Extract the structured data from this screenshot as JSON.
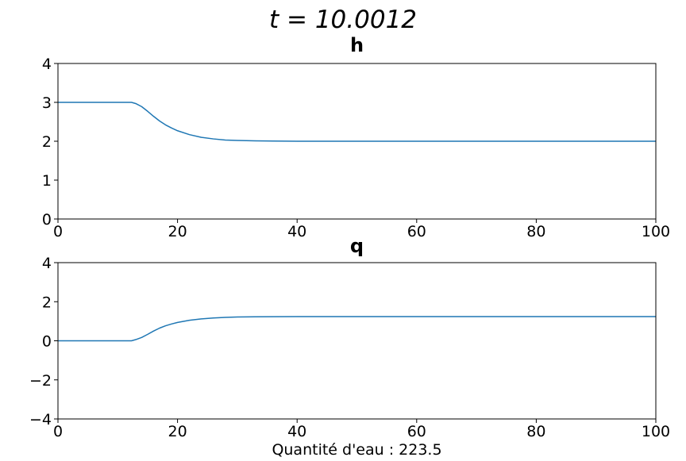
{
  "figure": {
    "suptitle": "t = 10.0012",
    "footer": "Quantité d'eau : 223.5",
    "line_color": "#1f77b4"
  },
  "chart_data": [
    {
      "type": "line",
      "title": "h",
      "xlabel": "",
      "ylabel": "",
      "xlim": [
        0,
        100
      ],
      "ylim": [
        0,
        4
      ],
      "xticks": [
        0,
        20,
        40,
        60,
        80,
        100
      ],
      "xtick_labels": [
        "0",
        "20",
        "40",
        "60",
        "80",
        "100"
      ],
      "yticks": [
        0,
        1,
        2,
        3,
        4
      ],
      "ytick_labels": [
        "0",
        "1",
        "2",
        "3",
        "4"
      ],
      "grid": false,
      "series": [
        {
          "x": [
            0,
            12.3,
            13,
            14,
            15,
            16,
            17,
            18,
            19,
            20,
            22,
            24,
            26,
            28,
            30,
            33,
            36,
            40,
            50,
            60,
            80,
            100
          ],
          "y": [
            3,
            3,
            2.97,
            2.89,
            2.77,
            2.64,
            2.52,
            2.42,
            2.34,
            2.27,
            2.17,
            2.1,
            2.06,
            2.03,
            2.02,
            2.01,
            2.005,
            2.0,
            2.0,
            2.0,
            2.0,
            2.0
          ]
        }
      ]
    },
    {
      "type": "line",
      "title": "q",
      "xlabel": "",
      "ylabel": "",
      "xlim": [
        0,
        100
      ],
      "ylim": [
        -4,
        4
      ],
      "xticks": [
        0,
        20,
        40,
        60,
        80,
        100
      ],
      "xtick_labels": [
        "0",
        "20",
        "40",
        "60",
        "80",
        "100"
      ],
      "yticks": [
        -4,
        -2,
        0,
        2,
        4
      ],
      "ytick_labels": [
        "−4",
        "−2",
        "0",
        "2",
        "4"
      ],
      "grid": false,
      "series": [
        {
          "x": [
            0,
            12.3,
            13,
            14,
            15,
            16,
            17,
            18,
            19,
            20,
            22,
            24,
            26,
            28,
            30,
            33,
            36,
            40,
            50,
            60,
            80,
            100
          ],
          "y": [
            0,
            0,
            0.06,
            0.17,
            0.33,
            0.5,
            0.65,
            0.77,
            0.86,
            0.94,
            1.05,
            1.12,
            1.17,
            1.2,
            1.22,
            1.23,
            1.235,
            1.24,
            1.24,
            1.24,
            1.24,
            1.24
          ]
        }
      ]
    }
  ]
}
